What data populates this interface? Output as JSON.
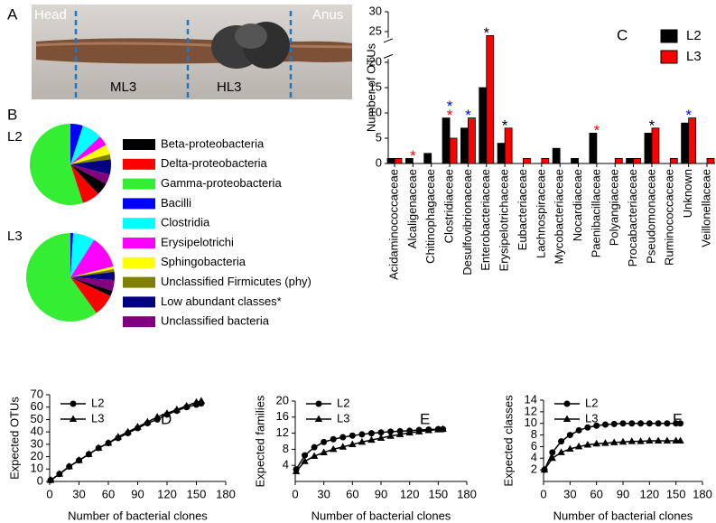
{
  "photo": {
    "panel_label": "A",
    "labels": [
      "Head",
      "Anus",
      "ML3",
      "HL3"
    ]
  },
  "chart_data": [
    {
      "type": "pie",
      "panel_label": "B",
      "categories": [
        "Beta-proteobacteria",
        "Delta-proteobacteria",
        "Gamma-proteobacteria",
        "Bacilli",
        "Clostridia",
        "Erysipelotrichi",
        "Sphingobacteria",
        "Unclassified Firmicutes (phy)",
        "Low abundant classes*",
        "Unclassified bacteria"
      ],
      "colors": [
        "#000000",
        "#ff0000",
        "#33ee33",
        "#0000ff",
        "#00ffff",
        "#ff00ff",
        "#ffff00",
        "#808000",
        "#000080",
        "#800080"
      ],
      "series": [
        {
          "name": "L2",
          "values": [
            5,
            7,
            55,
            5,
            8,
            4,
            4,
            2,
            6,
            4
          ]
        },
        {
          "name": "L3",
          "values": [
            2,
            8,
            60,
            1,
            8,
            12,
            1,
            1,
            3,
            4
          ]
        }
      ]
    },
    {
      "type": "bar",
      "panel_label": "C",
      "ylabel": "Number of OTUs",
      "categories": [
        "Acidaminococcaceae",
        "Alcaligenaceae",
        "Chitinophagaceae",
        "Clostridiaceae",
        "Desulfovibrionaceae",
        "Enterobacteriaceae",
        "Erysipelotrichaceae",
        "Eubacteriaceae",
        "Lachnospiraceae",
        "Mycobacteriaceae",
        "Nocardiaceae",
        "Paenibacillaceae",
        "Polyangiaceae",
        "Procabacteriaceae",
        "Pseudomonaceae",
        "Ruminococcaceae",
        "Unknown",
        "Veillonellaceae"
      ],
      "series": [
        {
          "name": "L2",
          "color": "#000000",
          "values": [
            1,
            1,
            2,
            9,
            7,
            15,
            4,
            0,
            0,
            3,
            1,
            6,
            0,
            1,
            6,
            0,
            8,
            0
          ]
        },
        {
          "name": "L3",
          "color": "#ff0000",
          "values": [
            1,
            0,
            0,
            5,
            9,
            24,
            7,
            1,
            1,
            0,
            0,
            0,
            1,
            1,
            7,
            1,
            9,
            1
          ]
        }
      ],
      "ylim": [
        0,
        30
      ],
      "yticks": [
        0,
        5,
        10,
        15,
        20,
        25,
        30
      ],
      "ybreak": [
        21,
        23
      ],
      "legend": "upper right",
      "annotations": [
        {
          "x": "Alcaligenaceae",
          "text": "*",
          "color": "#ff0000"
        },
        {
          "x": "Clostridiaceae",
          "text": "*",
          "color": "#ff0000"
        },
        {
          "x": "Clostridiaceae",
          "text": "*",
          "color": "#0000ff"
        },
        {
          "x": "Desulfovibrionaceae",
          "text": "*",
          "color": "#0000ff"
        },
        {
          "x": "Enterobacteriaceae",
          "text": "*",
          "color": "#000000"
        },
        {
          "x": "Erysipelotrichaceae",
          "text": "*",
          "color": "#000000"
        },
        {
          "x": "Paenibacillaceae",
          "text": "*",
          "color": "#ff0000"
        },
        {
          "x": "Pseudomonaceae",
          "text": "*",
          "color": "#000000"
        },
        {
          "x": "Unknown",
          "text": "*",
          "color": "#0000ff"
        }
      ]
    },
    {
      "type": "line",
      "panel_label": "D",
      "xlabel": "Number of bacterial clones",
      "ylabel": "Expected OTUs",
      "color": "#000000",
      "x": [
        1,
        10,
        20,
        30,
        40,
        50,
        60,
        70,
        80,
        90,
        100,
        110,
        120,
        130,
        140,
        150,
        155
      ],
      "series": [
        {
          "name": "L2",
          "marker": "circle",
          "values": [
            1,
            6,
            12,
            17,
            22,
            27,
            31,
            35,
            39,
            43,
            47,
            50,
            54,
            57,
            60,
            62,
            63
          ]
        },
        {
          "name": "L3",
          "marker": "triangle",
          "values": [
            1,
            6,
            12,
            17,
            22,
            27,
            31,
            36,
            40,
            44,
            48,
            52,
            55,
            58,
            61,
            64,
            65
          ]
        }
      ],
      "xlim": [
        0,
        180
      ],
      "xticks": [
        0,
        30,
        60,
        90,
        120,
        150,
        180
      ],
      "ylim": [
        0,
        70
      ],
      "yticks": [
        0,
        10,
        20,
        30,
        40,
        50,
        60,
        70
      ],
      "legend": "upper left"
    },
    {
      "type": "line",
      "panel_label": "E",
      "xlabel": "Number of bacterial clones",
      "ylabel": "Expected families",
      "color": "#000000",
      "x": [
        1,
        10,
        20,
        30,
        40,
        50,
        60,
        70,
        80,
        90,
        100,
        110,
        120,
        130,
        140,
        150,
        155
      ],
      "series": [
        {
          "name": "L2",
          "marker": "circle",
          "values": [
            3,
            6.5,
            8.5,
            9.8,
            10.5,
            11,
            11.4,
            11.7,
            12,
            12.2,
            12.4,
            12.5,
            12.6,
            12.8,
            12.9,
            13,
            13
          ]
        },
        {
          "name": "L3",
          "marker": "triangle",
          "values": [
            2.5,
            5,
            6.3,
            7.2,
            8,
            8.6,
            9.2,
            9.8,
            10.3,
            10.8,
            11.3,
            11.7,
            12.1,
            12.4,
            12.7,
            12.9,
            13
          ]
        }
      ],
      "xlim": [
        0,
        180
      ],
      "xticks": [
        0,
        30,
        60,
        90,
        120,
        150,
        180
      ],
      "ylim": [
        0,
        20
      ],
      "yticks": [
        4,
        8,
        12,
        16,
        20
      ],
      "legend": "upper left"
    },
    {
      "type": "line",
      "panel_label": "F",
      "xlabel": "Number of bacterial clones",
      "ylabel": "Expected classes",
      "color": "#000000",
      "x": [
        1,
        10,
        20,
        30,
        40,
        50,
        60,
        70,
        80,
        90,
        100,
        110,
        120,
        130,
        140,
        150,
        155
      ],
      "series": [
        {
          "name": "L2",
          "marker": "circle",
          "values": [
            2,
            5,
            6.9,
            8,
            8.8,
            9.3,
            9.6,
            9.8,
            9.9,
            10,
            10,
            10,
            10,
            10,
            10,
            10,
            10
          ]
        },
        {
          "name": "L3",
          "marker": "triangle",
          "values": [
            2,
            4,
            5,
            5.6,
            6,
            6.3,
            6.5,
            6.6,
            6.7,
            6.8,
            6.9,
            6.9,
            7,
            7,
            7,
            7,
            7
          ]
        }
      ],
      "xlim": [
        0,
        180
      ],
      "xticks": [
        0,
        30,
        60,
        90,
        120,
        150,
        180
      ],
      "ylim": [
        0,
        14
      ],
      "yticks": [
        2,
        4,
        6,
        8,
        10,
        12,
        14
      ],
      "legend": "upper left"
    }
  ]
}
